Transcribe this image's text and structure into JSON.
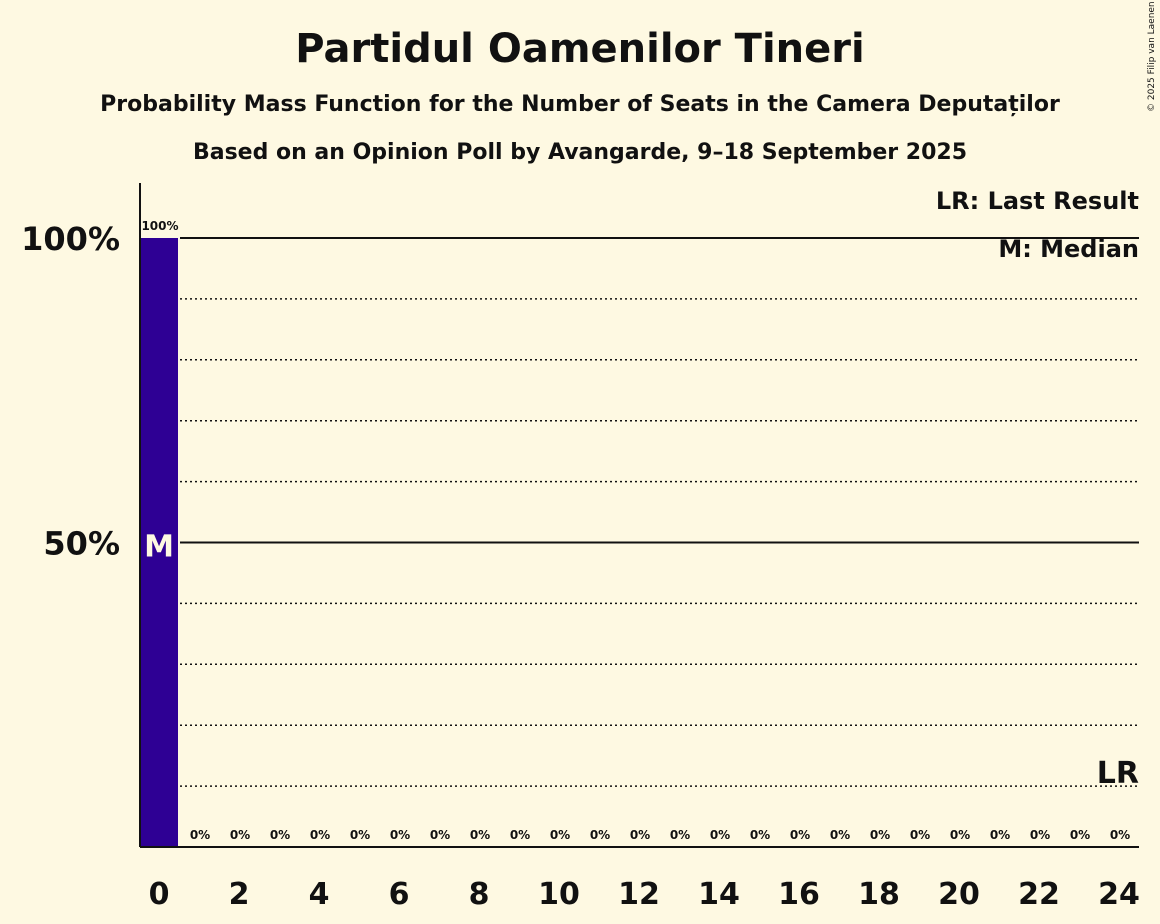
{
  "header": {
    "title": "Partidul Oamenilor Tineri",
    "subtitle": "Probability Mass Function for the Number of Seats in the Camera Deputaților",
    "subtitle2": "Based on an Opinion Poll by Avangarde, 9–18 September 2025",
    "copyright": "© 2025 Filip van Laenen"
  },
  "legend": {
    "last_result": "LR: Last Result",
    "median": "M: Median"
  },
  "chart_data": {
    "type": "bar",
    "x": [
      0,
      1,
      2,
      3,
      4,
      5,
      6,
      7,
      8,
      9,
      10,
      11,
      12,
      13,
      14,
      15,
      16,
      17,
      18,
      19,
      20,
      21,
      22,
      23,
      24
    ],
    "values": [
      100,
      0,
      0,
      0,
      0,
      0,
      0,
      0,
      0,
      0,
      0,
      0,
      0,
      0,
      0,
      0,
      0,
      0,
      0,
      0,
      0,
      0,
      0,
      0,
      0
    ],
    "value_labels": [
      "100%",
      "0%",
      "0%",
      "0%",
      "0%",
      "0%",
      "0%",
      "0%",
      "0%",
      "0%",
      "0%",
      "0%",
      "0%",
      "0%",
      "0%",
      "0%",
      "0%",
      "0%",
      "0%",
      "0%",
      "0%",
      "0%",
      "0%",
      "0%",
      "0%"
    ],
    "x_tick_labels": [
      "0",
      "2",
      "4",
      "6",
      "8",
      "10",
      "12",
      "14",
      "16",
      "18",
      "20",
      "22",
      "24"
    ],
    "y_tick_labels": [
      "100%",
      "50%"
    ],
    "y_ticks": [
      100,
      50
    ],
    "ylim": [
      0,
      110
    ],
    "median_seat": 0,
    "median_marker": "M",
    "last_result_seat": 24,
    "last_result_marker": "LR",
    "bar_color": "#2E0094",
    "grid": true
  }
}
